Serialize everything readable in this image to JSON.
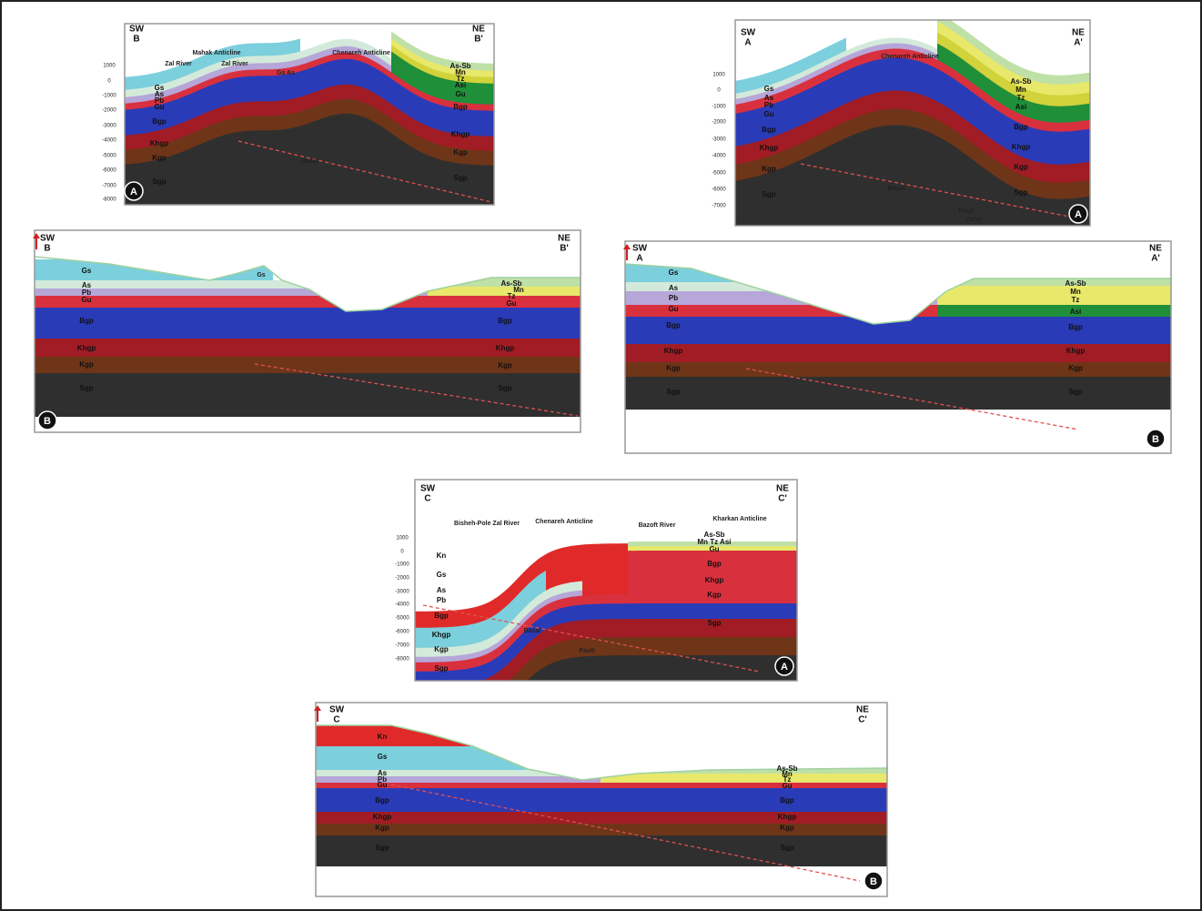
{
  "figure": {
    "panels": [
      {
        "direction_left": "SW",
        "section_left": "B",
        "direction_right": "NE",
        "section_right": "B'",
        "features": [
          "Mahak Anticline",
          "Zal River",
          "Zal River",
          "Chenareh Anticline",
          "Gs As",
          "Basal"
        ],
        "units": [
          "Gs",
          "As",
          "Pb",
          "Gu",
          "Bgp",
          "Khgp",
          "Kgp",
          "Sgp",
          "As-Sb",
          "Mn",
          "Tz",
          "Asi",
          "Gu",
          "Bgp",
          "Khgp",
          "Kgp",
          "Sgp"
        ],
        "depths": [
          "1000",
          "0",
          "-1000",
          "-2000",
          "-3000",
          "-4000",
          "-5000",
          "-6000",
          "-7000",
          "-8000"
        ],
        "marker": "A"
      },
      {
        "direction_left": "SW",
        "section_left": "A",
        "direction_right": "NE",
        "section_right": "A'",
        "features": [
          "Chenareh Anticline",
          "Basal",
          "Fault",
          "Zone"
        ],
        "units": [
          "Gs",
          "As",
          "Pb",
          "Gu",
          "Bgp",
          "Khgp",
          "Kgp",
          "Sgp",
          "As-Sb",
          "Mn",
          "Tz",
          "Asi",
          "Bgp",
          "Khgp",
          "Kgp",
          "Sgp"
        ],
        "depths": [
          "1000",
          "0",
          "-1000",
          "-2000",
          "-3000",
          "-4000",
          "-5000",
          "-6000",
          "-7000"
        ],
        "marker": "A"
      },
      {
        "direction_left": "SW",
        "section_left": "B",
        "direction_right": "NE",
        "section_right": "B'",
        "features": [
          "Gs"
        ],
        "units": [
          "Gs",
          "As",
          "Pb",
          "Gu",
          "Bgp",
          "Khgp",
          "Kgp",
          "Sgp",
          "As-Sb",
          "Mn",
          "Tz",
          "Gu",
          "Bgp",
          "Khgp",
          "Kgp",
          "Sgp"
        ],
        "depths": [],
        "marker": "B"
      },
      {
        "direction_left": "SW",
        "section_left": "A",
        "direction_right": "NE",
        "section_right": "A'",
        "features": [],
        "units": [
          "Gs",
          "As",
          "Pb",
          "Gu",
          "Bgp",
          "Khgp",
          "Kgp",
          "Sgp",
          "As-Sb",
          "Mn",
          "Tz",
          "Asi",
          "Bgp",
          "Khgp",
          "Kgp",
          "Sgp"
        ],
        "depths": [],
        "marker": "B"
      },
      {
        "direction_left": "SW",
        "section_left": "C",
        "direction_right": "NE",
        "section_right": "C'",
        "features": [
          "Bisheh-Pole Zal River",
          "Chenareh Anticline",
          "Bazoft River",
          "Kharkan Anticline",
          "Basal",
          "Fault"
        ],
        "units": [
          "Kn",
          "Gs",
          "As",
          "Pb",
          "Bgp",
          "Khgp",
          "Kgp",
          "Sgp",
          "As-Sb",
          "Mn Tz Asi",
          "Gu",
          "Bgp",
          "Khgp",
          "Kgp",
          "Sgp"
        ],
        "depths": [
          "1000",
          "0",
          "-1000",
          "-2000",
          "-3000",
          "-4000",
          "-5000",
          "-6000",
          "-7000",
          "-8000"
        ],
        "marker": "A"
      },
      {
        "direction_left": "SW",
        "section_left": "C",
        "direction_right": "NE",
        "section_right": "C'",
        "features": [],
        "units": [
          "Kn",
          "Gs",
          "As",
          "Pb",
          "Gu",
          "Bgp",
          "Khgp",
          "Kgp",
          "Sgp",
          "As-Sb",
          "Mn",
          "Tz",
          "Gu",
          "Bgp",
          "Khgp",
          "Kgp",
          "Sgp"
        ],
        "depths": [],
        "marker": "B"
      }
    ]
  }
}
